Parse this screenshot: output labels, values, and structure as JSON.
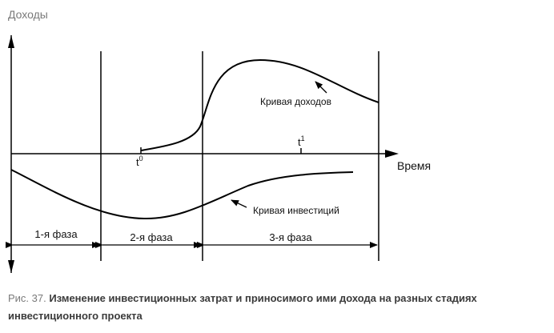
{
  "diagram": {
    "y_axis_label": "Доходы",
    "x_axis_label": "Время",
    "t0_label": "t",
    "t0_sup": "0",
    "t1_label": "t",
    "t1_sup": "1",
    "income_curve_label": "Кривая доходов",
    "investment_curve_label": "Кривая инвестиций",
    "phases": [
      "1-я фаза",
      "2-я фаза",
      "3-я фаза"
    ]
  },
  "caption": {
    "prefix": "Рис. 37. ",
    "title": "Изменение инвестиционных затрат и приносимого ими дохода на разных стадиях инвестиционного проекта"
  }
}
